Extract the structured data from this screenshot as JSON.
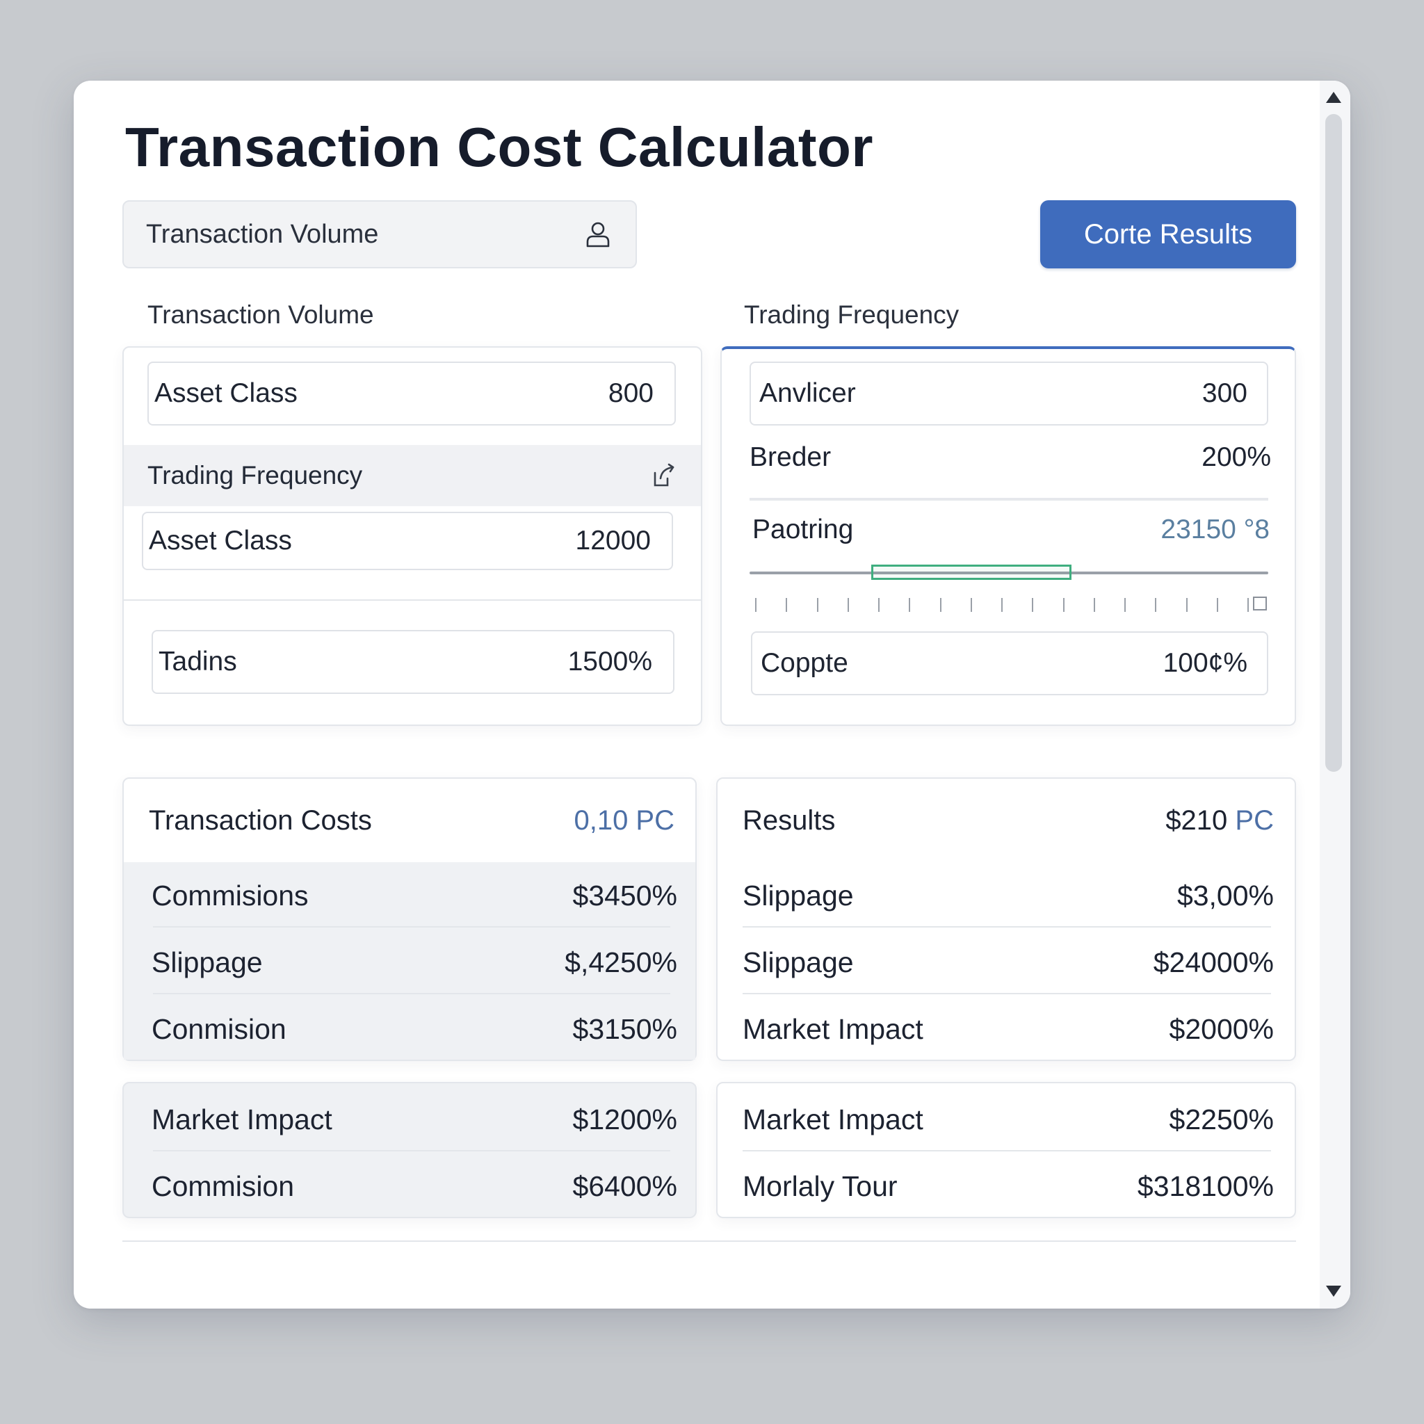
{
  "app": {
    "title": "Transaction Cost Calculator"
  },
  "search": {
    "label": "Transaction Volume",
    "icon": "user-icon"
  },
  "actions": {
    "compute_label": "Corte Results"
  },
  "inputs_left": {
    "section_label": "Transaction Volume",
    "field1": {
      "label": "Asset Class",
      "value": "800"
    },
    "strip": {
      "label": "Trading Frequency",
      "icon": "share-icon"
    },
    "field2": {
      "label": "Asset Class",
      "value": "12000"
    },
    "field3": {
      "label": "Tadins",
      "value": "1500%"
    }
  },
  "inputs_right": {
    "section_label": "Trading Frequency",
    "field1": {
      "label": "Anvlicer",
      "value": "300"
    },
    "row_breder": {
      "label": "Breder",
      "value": "200%"
    },
    "slider": {
      "label": "Paotring",
      "value": "23150 °8",
      "selection_start": 0.235,
      "selection_end": 0.62
    },
    "field2": {
      "label": "Coppte",
      "value": "100¢%"
    }
  },
  "costs": {
    "header": {
      "label": "Transaction Costs",
      "value": "0,10 PC"
    },
    "rows": [
      {
        "label": "Commisions",
        "value": "$3450%"
      },
      {
        "label": "Slippage",
        "value": "$,4250%"
      },
      {
        "label": "Conmision",
        "value": "$3150%"
      }
    ]
  },
  "results": {
    "header": {
      "label": "Results",
      "value_main": "$210",
      "value_unit": "PC"
    },
    "rows": [
      {
        "label": "Slippage",
        "value": "$3,00%"
      },
      {
        "label": "Slippage",
        "value": "$24000%"
      },
      {
        "label": "Market Impact",
        "value": "$2000%"
      }
    ]
  },
  "extra_left": {
    "rows": [
      {
        "label": "Market Impact",
        "value": "$1200%"
      },
      {
        "label": "Commision",
        "value": "$6400%"
      }
    ]
  },
  "extra_right": {
    "rows": [
      {
        "label": "Market Impact",
        "value": "$2250%"
      },
      {
        "label": "Morlaly Tour",
        "value": "$318100%"
      }
    ]
  },
  "colors": {
    "accent": "#3f6cbd",
    "slider_selection": "#3fae7f",
    "muted_value": "#4c6fa6"
  }
}
